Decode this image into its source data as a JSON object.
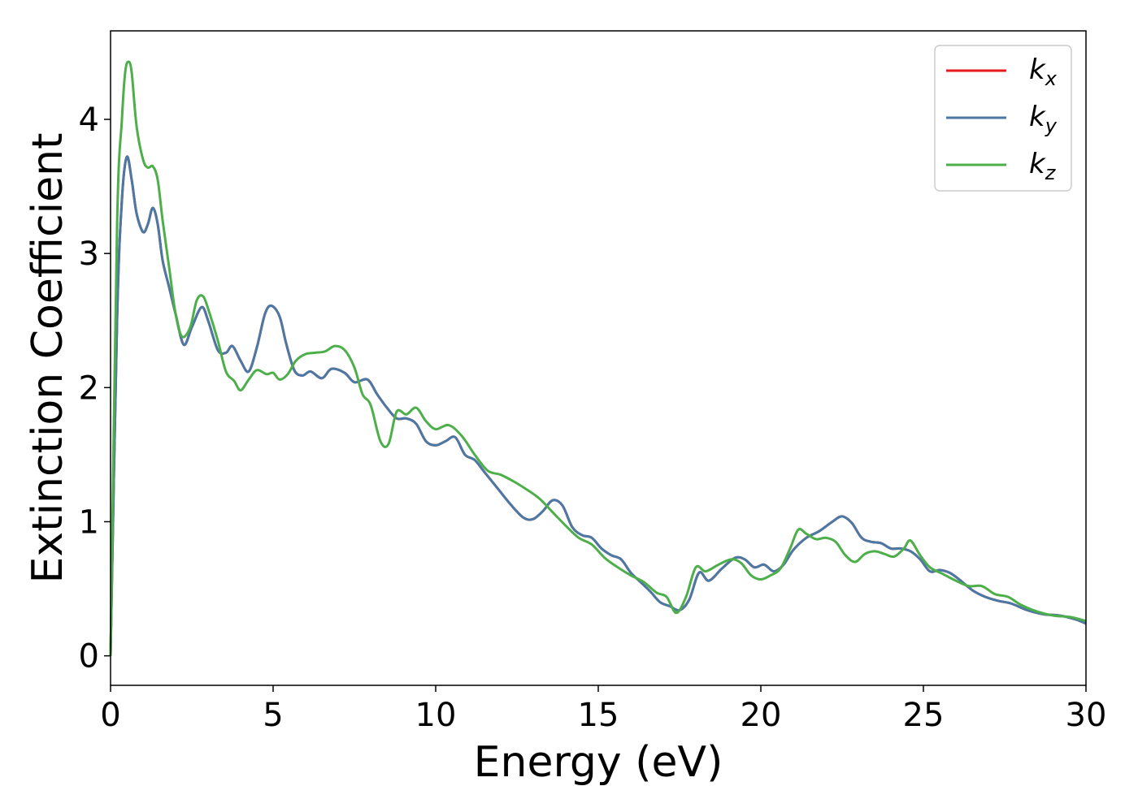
{
  "chart_data": {
    "type": "line",
    "title": "",
    "xlabel": "Energy (eV)",
    "ylabel": "Extinction Coefficient",
    "xlim": [
      0,
      30
    ],
    "ylim": [
      -0.22,
      4.66
    ],
    "xticks": [
      0,
      5,
      10,
      15,
      20,
      25,
      30
    ],
    "yticks": [
      0,
      1,
      2,
      3,
      4
    ],
    "grid": false,
    "legend_position": "top-right",
    "series": [
      {
        "name": "k",
        "subscript": "x",
        "color": "#e41a1c",
        "x": [
          0,
          0.2,
          0.35,
          0.5,
          0.65,
          0.8,
          1.0,
          1.15,
          1.3,
          1.45,
          1.6,
          1.8,
          2.0,
          2.25,
          2.5,
          2.8,
          3.0,
          3.3,
          3.55,
          3.75,
          4.0,
          4.25,
          4.5,
          4.75,
          4.95,
          5.2,
          5.4,
          5.65,
          5.9,
          6.15,
          6.5,
          6.8,
          7.2,
          7.5,
          7.9,
          8.2,
          8.5,
          8.8,
          9.1,
          9.4,
          9.7,
          10.0,
          10.3,
          10.6,
          10.9,
          11.2,
          11.5,
          11.9,
          12.3,
          12.7,
          13.0,
          13.3,
          13.6,
          13.9,
          14.2,
          14.5,
          14.8,
          15.1,
          15.4,
          15.7,
          16.0,
          16.3,
          16.6,
          16.9,
          17.2,
          17.5,
          17.8,
          18.1,
          18.4,
          18.8,
          19.2,
          19.5,
          19.8,
          20.1,
          20.4,
          20.7,
          21.0,
          21.4,
          21.8,
          22.2,
          22.5,
          22.8,
          23.1,
          23.4,
          23.7,
          24.0,
          24.3,
          24.6,
          24.9,
          25.2,
          25.5,
          25.8,
          26.1,
          26.5,
          26.9,
          27.3,
          27.7,
          28.2,
          28.7,
          29.2,
          29.7,
          30.0
        ],
        "values": [
          0,
          2.5,
          3.4,
          3.72,
          3.55,
          3.3,
          3.16,
          3.22,
          3.34,
          3.22,
          2.95,
          2.75,
          2.55,
          2.32,
          2.45,
          2.6,
          2.5,
          2.28,
          2.26,
          2.31,
          2.2,
          2.12,
          2.3,
          2.55,
          2.61,
          2.53,
          2.33,
          2.13,
          2.09,
          2.12,
          2.07,
          2.14,
          2.11,
          2.04,
          2.06,
          1.95,
          1.85,
          1.77,
          1.77,
          1.73,
          1.6,
          1.57,
          1.6,
          1.63,
          1.5,
          1.46,
          1.37,
          1.25,
          1.13,
          1.03,
          1.02,
          1.08,
          1.16,
          1.12,
          0.96,
          0.9,
          0.88,
          0.8,
          0.75,
          0.72,
          0.62,
          0.55,
          0.48,
          0.4,
          0.37,
          0.34,
          0.42,
          0.62,
          0.56,
          0.65,
          0.73,
          0.72,
          0.66,
          0.68,
          0.63,
          0.68,
          0.79,
          0.88,
          0.93,
          1.0,
          1.04,
          0.99,
          0.88,
          0.85,
          0.84,
          0.8,
          0.8,
          0.78,
          0.72,
          0.63,
          0.64,
          0.62,
          0.57,
          0.49,
          0.44,
          0.41,
          0.39,
          0.34,
          0.31,
          0.3,
          0.27,
          0.24
        ]
      },
      {
        "name": "k",
        "subscript": "y",
        "color": "#4a79a5",
        "x": [
          0,
          0.2,
          0.35,
          0.5,
          0.65,
          0.8,
          1.0,
          1.15,
          1.3,
          1.45,
          1.6,
          1.8,
          2.0,
          2.25,
          2.5,
          2.8,
          3.0,
          3.3,
          3.55,
          3.75,
          4.0,
          4.25,
          4.5,
          4.75,
          4.95,
          5.2,
          5.4,
          5.65,
          5.9,
          6.15,
          6.5,
          6.8,
          7.2,
          7.5,
          7.9,
          8.2,
          8.5,
          8.8,
          9.1,
          9.4,
          9.7,
          10.0,
          10.3,
          10.6,
          10.9,
          11.2,
          11.5,
          11.9,
          12.3,
          12.7,
          13.0,
          13.3,
          13.6,
          13.9,
          14.2,
          14.5,
          14.8,
          15.1,
          15.4,
          15.7,
          16.0,
          16.3,
          16.6,
          16.9,
          17.2,
          17.5,
          17.8,
          18.1,
          18.4,
          18.8,
          19.2,
          19.5,
          19.8,
          20.1,
          20.4,
          20.7,
          21.0,
          21.4,
          21.8,
          22.2,
          22.5,
          22.8,
          23.1,
          23.4,
          23.7,
          24.0,
          24.3,
          24.6,
          24.9,
          25.2,
          25.5,
          25.8,
          26.1,
          26.5,
          26.9,
          27.3,
          27.7,
          28.2,
          28.7,
          29.2,
          29.7,
          30.0
        ],
        "values": [
          0,
          2.5,
          3.4,
          3.72,
          3.55,
          3.3,
          3.16,
          3.22,
          3.34,
          3.22,
          2.95,
          2.75,
          2.55,
          2.32,
          2.45,
          2.6,
          2.5,
          2.28,
          2.26,
          2.31,
          2.2,
          2.12,
          2.3,
          2.55,
          2.61,
          2.53,
          2.33,
          2.13,
          2.09,
          2.12,
          2.07,
          2.14,
          2.11,
          2.04,
          2.06,
          1.95,
          1.85,
          1.77,
          1.77,
          1.73,
          1.6,
          1.57,
          1.6,
          1.63,
          1.5,
          1.46,
          1.37,
          1.25,
          1.13,
          1.03,
          1.02,
          1.08,
          1.16,
          1.12,
          0.96,
          0.9,
          0.88,
          0.8,
          0.75,
          0.72,
          0.62,
          0.55,
          0.48,
          0.4,
          0.37,
          0.34,
          0.42,
          0.62,
          0.56,
          0.65,
          0.73,
          0.72,
          0.66,
          0.68,
          0.63,
          0.68,
          0.79,
          0.88,
          0.93,
          1.0,
          1.04,
          0.99,
          0.88,
          0.85,
          0.84,
          0.8,
          0.8,
          0.78,
          0.72,
          0.63,
          0.64,
          0.62,
          0.57,
          0.49,
          0.44,
          0.41,
          0.39,
          0.34,
          0.31,
          0.3,
          0.27,
          0.24
        ]
      },
      {
        "name": "k",
        "subscript": "z",
        "color": "#4daf4a",
        "x": [
          0,
          0.2,
          0.35,
          0.45,
          0.55,
          0.65,
          0.8,
          1.0,
          1.15,
          1.3,
          1.45,
          1.6,
          1.8,
          2.0,
          2.2,
          2.45,
          2.65,
          2.85,
          3.05,
          3.3,
          3.55,
          3.8,
          4.0,
          4.25,
          4.5,
          4.8,
          5.0,
          5.2,
          5.45,
          5.7,
          6.0,
          6.3,
          6.6,
          6.9,
          7.2,
          7.5,
          7.75,
          8.0,
          8.3,
          8.55,
          8.8,
          9.1,
          9.4,
          9.7,
          10.0,
          10.4,
          10.8,
          11.2,
          11.6,
          12.0,
          12.4,
          12.8,
          13.2,
          13.6,
          14.0,
          14.4,
          14.8,
          15.2,
          15.6,
          16.0,
          16.4,
          16.8,
          17.1,
          17.4,
          17.7,
          18.0,
          18.3,
          18.7,
          19.1,
          19.4,
          19.7,
          20.0,
          20.3,
          20.6,
          20.9,
          21.15,
          21.4,
          21.7,
          22.0,
          22.3,
          22.6,
          22.9,
          23.2,
          23.5,
          23.8,
          24.1,
          24.4,
          24.6,
          24.9,
          25.2,
          25.6,
          26.0,
          26.4,
          26.8,
          27.2,
          27.6,
          28.0,
          28.5,
          29.0,
          29.5,
          30.0
        ],
        "values": [
          0,
          3.2,
          4.0,
          4.35,
          4.43,
          4.35,
          3.95,
          3.7,
          3.64,
          3.65,
          3.55,
          3.25,
          2.9,
          2.55,
          2.38,
          2.45,
          2.65,
          2.68,
          2.55,
          2.35,
          2.12,
          2.05,
          1.98,
          2.06,
          2.13,
          2.1,
          2.11,
          2.06,
          2.1,
          2.2,
          2.25,
          2.26,
          2.27,
          2.31,
          2.28,
          2.15,
          1.95,
          1.87,
          1.6,
          1.58,
          1.82,
          1.8,
          1.85,
          1.75,
          1.69,
          1.72,
          1.64,
          1.5,
          1.38,
          1.35,
          1.3,
          1.24,
          1.17,
          1.07,
          0.97,
          0.88,
          0.83,
          0.73,
          0.66,
          0.6,
          0.55,
          0.47,
          0.44,
          0.32,
          0.44,
          0.66,
          0.63,
          0.68,
          0.72,
          0.69,
          0.6,
          0.57,
          0.6,
          0.65,
          0.8,
          0.94,
          0.91,
          0.87,
          0.88,
          0.85,
          0.75,
          0.7,
          0.76,
          0.78,
          0.76,
          0.74,
          0.8,
          0.86,
          0.75,
          0.66,
          0.61,
          0.56,
          0.52,
          0.52,
          0.46,
          0.44,
          0.38,
          0.33,
          0.3,
          0.29,
          0.26
        ]
      }
    ]
  }
}
